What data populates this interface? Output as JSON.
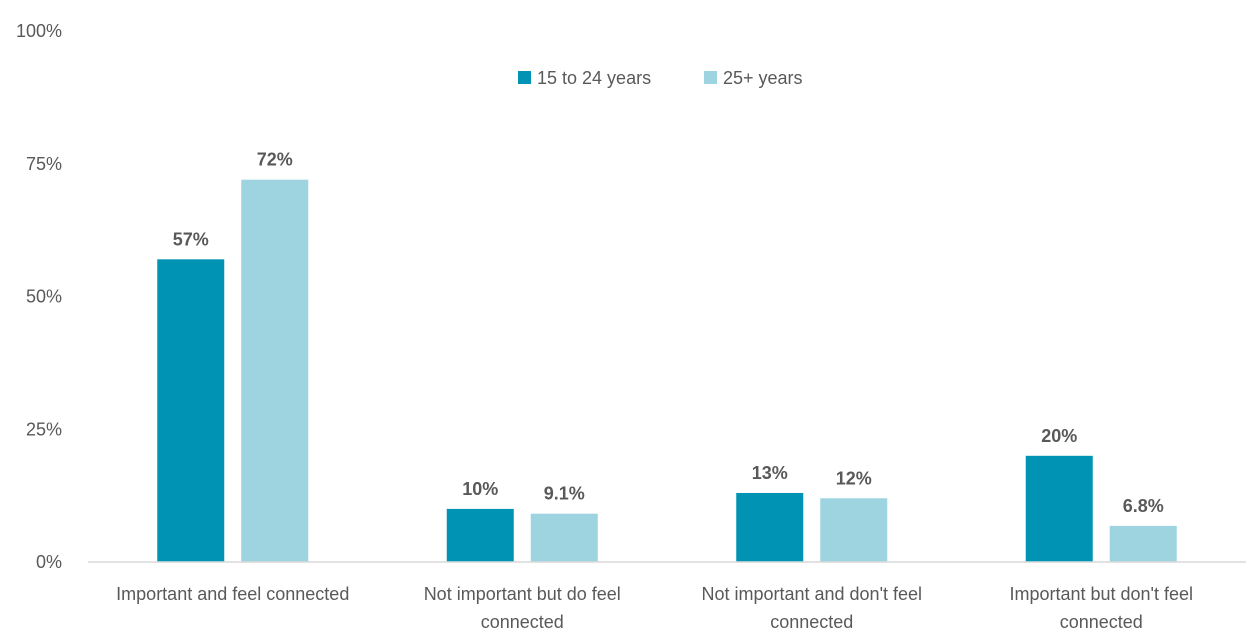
{
  "chart_data": {
    "type": "bar",
    "categories": [
      [
        "Important and feel connected"
      ],
      [
        "Not important but do feel",
        "connected"
      ],
      [
        "Not important and don't feel",
        "connected"
      ],
      [
        "Important but don't feel",
        "connected"
      ]
    ],
    "series": [
      {
        "name": "15 to 24 years",
        "color": "#0093b4",
        "values": [
          57,
          10,
          13,
          20
        ],
        "labels": [
          "57%",
          "10%",
          "13%",
          "20%"
        ]
      },
      {
        "name": "25+ years",
        "color": "#9dd4e0",
        "values": [
          72,
          9.1,
          12,
          6.8
        ],
        "labels": [
          "72%",
          "9.1%",
          "12%",
          "6.8%"
        ]
      }
    ],
    "yticks": [
      0,
      25,
      50,
      75,
      100
    ],
    "ytick_labels": [
      "0%",
      "25%",
      "50%",
      "75%",
      "100%"
    ],
    "ylim": [
      0,
      100
    ],
    "legend_position": "top-center",
    "grid": false,
    "axis_color": "#d9d9d9"
  }
}
